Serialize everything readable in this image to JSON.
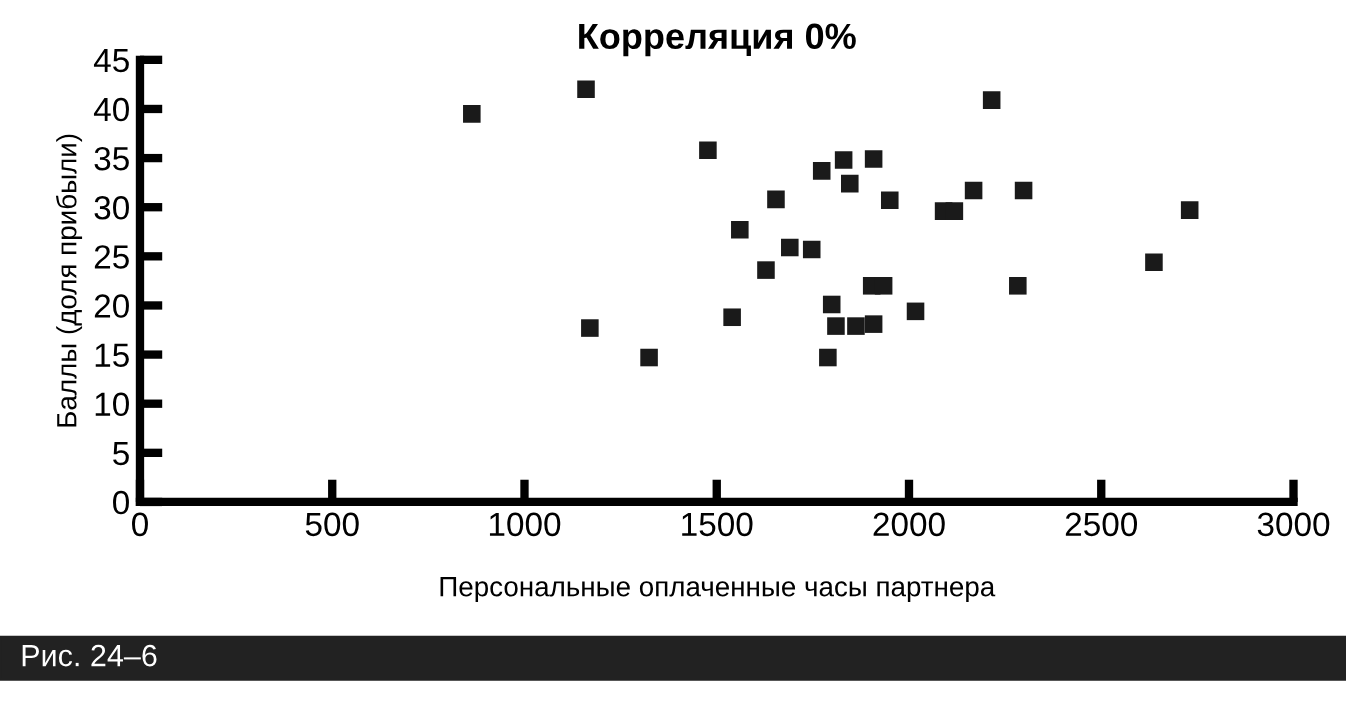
{
  "chart_data": {
    "type": "scatter",
    "title": "Корреляция 0%",
    "xlabel": "Персональные оплаченные часы партнера",
    "ylabel": "Баллы (доля прибыли)",
    "annotations": [
      "Рис. 24–6"
    ],
    "x": [
      863,
      1160,
      1170,
      1324,
      1477,
      1560,
      1540,
      1628,
      1654,
      1690,
      1747,
      1773,
      1830,
      1846,
      1908,
      1950,
      1799,
      1789,
      1810,
      1862,
      1908,
      1903,
      1934,
      2017,
      2090,
      2118,
      2168,
      2215,
      2298,
      2283,
      2637,
      2730
    ],
    "series": [
      {
        "color": "#1a1a1a",
        "values": [
          39.5,
          42,
          17.7,
          14.7,
          35.8,
          27.7,
          18.8,
          23.6,
          30.8,
          25.9,
          25.7,
          33.7,
          34.8,
          32.4,
          34.9,
          30.7,
          20.1,
          14.7,
          17.9,
          17.9,
          18.1,
          22,
          22,
          19.4,
          29.6,
          29.6,
          31.7,
          40.9,
          31.7,
          22,
          24.4,
          29.7
        ]
      }
    ],
    "marker": "square",
    "grid": false,
    "legend": false,
    "xlim": [
      0,
      3000
    ],
    "xticks": [
      0,
      500,
      1000,
      1500,
      2000,
      2500,
      3000
    ],
    "ylim": [
      0,
      45
    ],
    "yticks": [
      0,
      5,
      10,
      15,
      20,
      25,
      30,
      35,
      40,
      45
    ]
  }
}
